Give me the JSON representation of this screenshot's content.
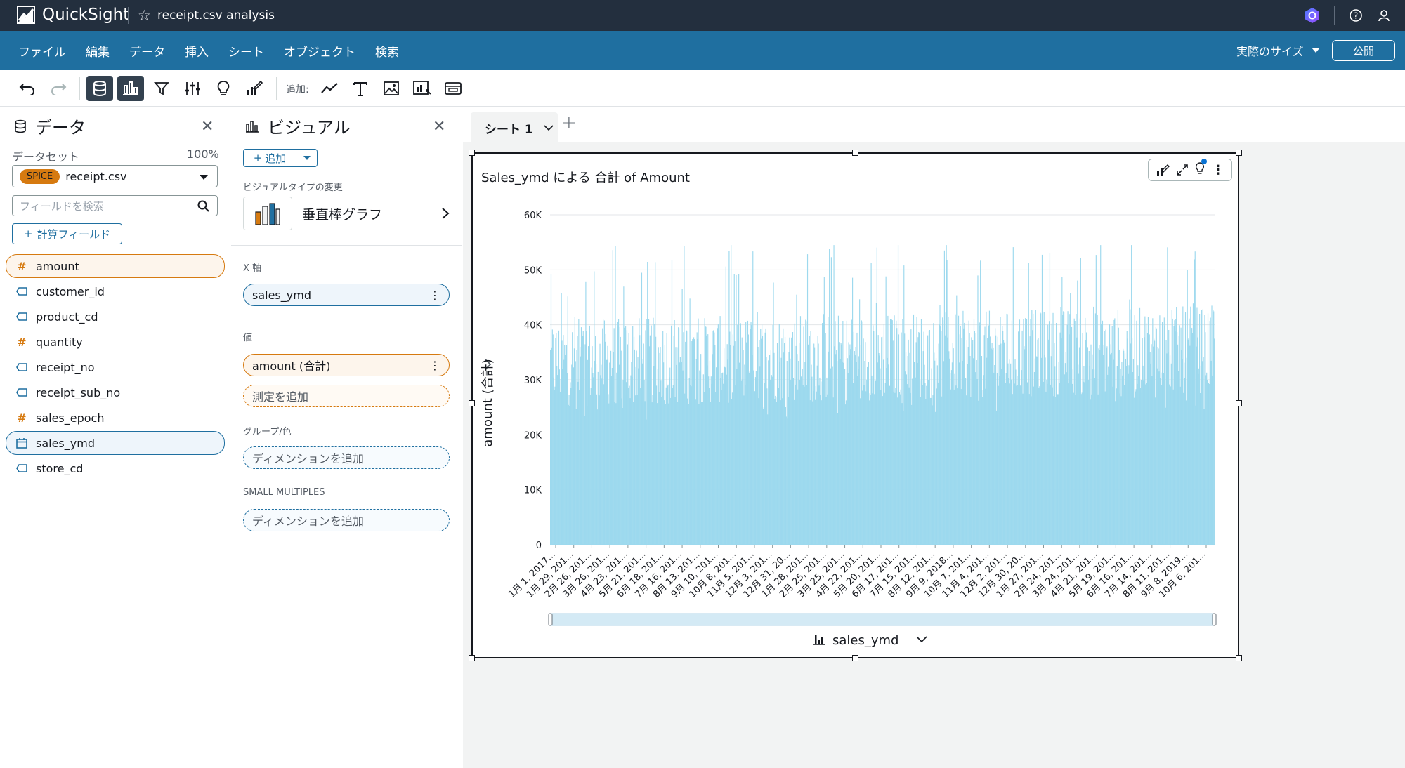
{
  "app": {
    "name": "QuickSight",
    "document_title": "receipt.csv analysis"
  },
  "menu": {
    "items": [
      "ファイル",
      "編集",
      "データ",
      "挿入",
      "シート",
      "オブジェクト",
      "検索"
    ],
    "size_label": "実際のサイズ",
    "publish_label": "公開"
  },
  "toolbar": {
    "add_label": "追加:"
  },
  "data_panel": {
    "title": "データ",
    "dataset_label": "データセット",
    "dataset_percent": "100%",
    "spice_badge": "SPICE",
    "dataset_name": "receipt.csv",
    "search_placeholder": "フィールドを検索",
    "calc_field_label": "計算フィールド",
    "fields": [
      {
        "name": "amount",
        "type": "number"
      },
      {
        "name": "customer_id",
        "type": "string"
      },
      {
        "name": "product_cd",
        "type": "string"
      },
      {
        "name": "quantity",
        "type": "number"
      },
      {
        "name": "receipt_no",
        "type": "string"
      },
      {
        "name": "receipt_sub_no",
        "type": "string"
      },
      {
        "name": "sales_epoch",
        "type": "number"
      },
      {
        "name": "sales_ymd",
        "type": "date"
      },
      {
        "name": "store_cd",
        "type": "string"
      }
    ]
  },
  "visual_panel": {
    "title": "ビジュアル",
    "add_label": "追加",
    "visual_type_label": "ビジュアルタイプの変更",
    "visual_type_name": "垂直棒グラフ",
    "x_axis_label": "X 軸",
    "x_axis_field": "sales_ymd",
    "value_label": "値",
    "value_field": "amount (合計)",
    "add_measure": "測定を追加",
    "group_label": "グループ/色",
    "add_dimension": "ディメンションを追加",
    "small_multiples_label": "SMALL MULTIPLES",
    "add_dimension_2": "ディメンションを追加"
  },
  "sheet": {
    "tab_name": "シート 1"
  },
  "visual": {
    "title": "Sales_ymd による 合計 of Amount",
    "x_field_label": "sales_ymd"
  },
  "chart_data": {
    "type": "bar",
    "title": "Sales_ymd による 合計 of Amount",
    "xlabel": "sales_ymd",
    "ylabel": "amount (合計)",
    "ylim": [
      0,
      60000
    ],
    "y_ticks": [
      "0",
      "10K",
      "20K",
      "30K",
      "40K",
      "50K",
      "60K"
    ],
    "x_tick_labels": [
      "1月 1, 2017...",
      "1月 29, 201...",
      "2月 26, 201...",
      "3月 26, 201...",
      "4月 23, 201...",
      "5月 21, 201...",
      "6月 18, 201...",
      "7月 16, 201...",
      "8月 13, 201...",
      "9月 10, 201...",
      "10月 8, 201...",
      "11月 5, 201...",
      "12月 3, 201...",
      "12月 31, 20...",
      "1月 28, 201...",
      "2月 25, 201...",
      "3月 25, 201...",
      "4月 22, 201...",
      "5月 20, 201...",
      "6月 17, 201...",
      "7月 15, 201...",
      "8月 12, 201...",
      "9月 9, 2018...",
      "10月 7, 201...",
      "11月 4, 201...",
      "12月 2, 201...",
      "12月 30, 20...",
      "1月 27, 201...",
      "2月 24, 201...",
      "3月 24, 201...",
      "4月 21, 201...",
      "5月 19, 201...",
      "6月 16, 201...",
      "7月 14, 201...",
      "8月 11, 201...",
      "9月 8, 2019...",
      "10月 6, 201..."
    ],
    "series": [
      {
        "color": "#9dd9ee",
        "summary": {
          "points": 1034,
          "min": 22000,
          "max": 54500,
          "typical": 33000
        }
      }
    ],
    "grid": true,
    "legend": "none"
  }
}
